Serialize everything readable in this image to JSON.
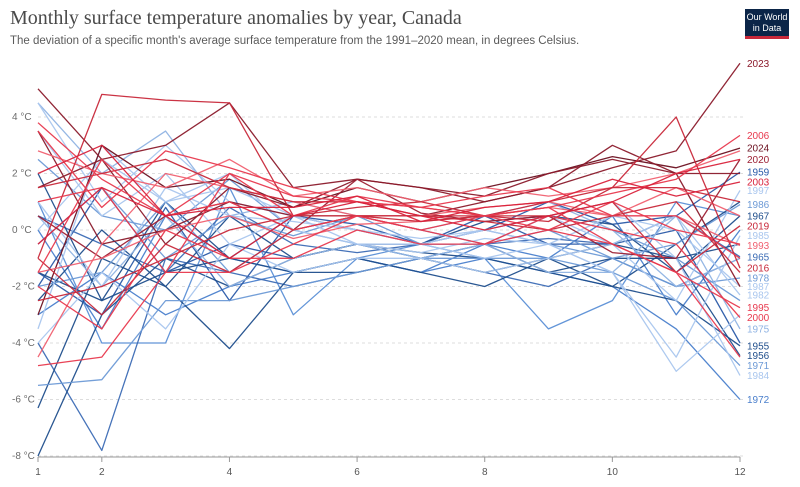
{
  "chart_data": {
    "type": "line",
    "title": "Monthly surface temperature anomalies by year, Canada",
    "subtitle": "The deviation of a specific month's average surface temperature from the 1991–2020 mean, in degrees Celsius.",
    "logo": [
      "Our World",
      "in Data"
    ],
    "x_ticks": [
      1,
      2,
      4,
      6,
      8,
      10,
      12
    ],
    "y_ticks": [
      {
        "value": 4,
        "label": "4 °C"
      },
      {
        "value": 2,
        "label": "2 °C"
      },
      {
        "value": 0,
        "label": "0 °C"
      },
      {
        "value": -2,
        "label": "-2 °C"
      },
      {
        "value": -4,
        "label": "-4 °C"
      },
      {
        "value": -6,
        "label": "-6 °C"
      },
      {
        "value": -8,
        "label": "-8 °C"
      }
    ],
    "xlim": [
      1,
      12
    ],
    "ylim": [
      -8,
      6
    ],
    "grid": "horizontal dashed",
    "colors": {
      "cold": "#1f4e8c",
      "mid_blue": "#5b8fd6",
      "light_blue": "#a9c6ee",
      "warm": "#e8394e",
      "dark_red": "#8b1a2b"
    },
    "end_labels": [
      {
        "label": "2023",
        "y": 5.9,
        "color": "#8b1a2b"
      },
      {
        "label": "2006",
        "y": 3.35,
        "color": "#e8394e"
      },
      {
        "label": "2024",
        "y": 2.9,
        "color": "#6b1020"
      },
      {
        "label": "2020",
        "y": 2.5,
        "color": "#9c1f33"
      },
      {
        "label": "1959",
        "y": 2.05,
        "color": "#2a5aa8"
      },
      {
        "label": "2003",
        "y": 1.7,
        "color": "#d9223b"
      },
      {
        "label": "1997",
        "y": 1.4,
        "color": "#a9c6ee"
      },
      {
        "label": "1986",
        "y": 0.9,
        "color": "#6d9ad6"
      },
      {
        "label": "1967",
        "y": 0.5,
        "color": "#1f4e8c"
      },
      {
        "label": "2019",
        "y": 0.15,
        "color": "#c8283a"
      },
      {
        "label": "1985",
        "y": -0.2,
        "color": "#a9c6ee"
      },
      {
        "label": "1993",
        "y": -0.55,
        "color": "#f06070"
      },
      {
        "label": "1965",
        "y": -0.95,
        "color": "#3c6cb5"
      },
      {
        "label": "2016",
        "y": -1.35,
        "color": "#c8283a"
      },
      {
        "label": "1978",
        "y": -1.7,
        "color": "#6d9ad6"
      },
      {
        "label": "1987",
        "y": -2.0,
        "color": "#a9c6ee"
      },
      {
        "label": "1982",
        "y": -2.3,
        "color": "#a9c6ee"
      },
      {
        "label": "1995",
        "y": -2.75,
        "color": "#e8394e"
      },
      {
        "label": "2000",
        "y": -3.1,
        "color": "#e8394e"
      },
      {
        "label": "1975",
        "y": -3.5,
        "color": "#8fb3e3"
      },
      {
        "label": "1955",
        "y": -4.1,
        "color": "#1f4e8c"
      },
      {
        "label": "1956",
        "y": -4.45,
        "color": "#1f4e8c"
      },
      {
        "label": "1971",
        "y": -4.8,
        "color": "#6d9ad6"
      },
      {
        "label": "1984",
        "y": -5.15,
        "color": "#a9c6ee"
      },
      {
        "label": "1972",
        "y": -6.0,
        "color": "#4a7fcc"
      }
    ],
    "series": [
      {
        "name": "2023",
        "color": "#8b1a2b",
        "values": [
          1.5,
          2.5,
          -0.5,
          1.5,
          0.8,
          1.8,
          1.5,
          1.0,
          1.5,
          2.2,
          2.8,
          5.9
        ]
      },
      {
        "name": "2006",
        "color": "#e8394e",
        "values": [
          3.8,
          1.8,
          0.5,
          2.0,
          1.2,
          1.0,
          0.8,
          0.5,
          0.8,
          1.3,
          1.8,
          3.35
        ]
      },
      {
        "name": "2024",
        "color": "#6b1020",
        "values": [
          -3.0,
          3.0,
          1.5,
          1.8,
          0.8,
          1.5,
          1.0,
          1.5,
          2.0,
          2.6,
          2.2,
          2.9
        ]
      },
      {
        "name": "2020",
        "color": "#9c1f33",
        "values": [
          0.5,
          -1.0,
          0.5,
          1.0,
          0.0,
          1.8,
          0.6,
          0.3,
          0.5,
          -0.8,
          -1.0,
          2.5
        ]
      },
      {
        "name": "1959",
        "color": "#2a5aa8",
        "values": [
          -1.5,
          -3.0,
          0.8,
          -2.5,
          0.5,
          0.2,
          -0.5,
          0.0,
          1.0,
          0.2,
          0.5,
          2.05
        ]
      },
      {
        "name": "2003",
        "color": "#d9223b",
        "values": [
          -0.5,
          1.5,
          0.5,
          0.8,
          0.8,
          1.2,
          0.3,
          0.8,
          1.0,
          1.8,
          1.2,
          1.7
        ]
      },
      {
        "name": "1997",
        "color": "#a9c6ee",
        "values": [
          1.0,
          -2.0,
          1.5,
          0.5,
          0.3,
          0.0,
          -0.3,
          0.0,
          0.5,
          -0.5,
          -2.5,
          1.4
        ]
      },
      {
        "name": "1986",
        "color": "#6d9ad6",
        "values": [
          -0.5,
          1.5,
          -1.0,
          0.5,
          -0.2,
          0.5,
          0.0,
          -0.5,
          0.0,
          -1.0,
          -0.5,
          0.9
        ]
      },
      {
        "name": "1967",
        "color": "#1f4e8c",
        "values": [
          2.0,
          -2.5,
          1.0,
          -1.0,
          0.5,
          0.0,
          -0.5,
          0.3,
          0.5,
          0.2,
          -1.5,
          0.5
        ]
      },
      {
        "name": "2019",
        "color": "#c8283a",
        "values": [
          -1.0,
          -3.0,
          -0.5,
          -1.5,
          0.0,
          0.5,
          0.3,
          0.5,
          0.5,
          1.0,
          -1.5,
          0.15
        ]
      },
      {
        "name": "1985",
        "color": "#a9c6ee",
        "values": [
          3.5,
          0.5,
          2.0,
          -0.5,
          0.5,
          -0.5,
          -0.8,
          -0.3,
          -0.5,
          -1.5,
          -4.5,
          -0.2
        ]
      },
      {
        "name": "1993",
        "color": "#f06070",
        "values": [
          -1.5,
          -1.0,
          0.0,
          0.5,
          -0.3,
          0.2,
          0.3,
          0.5,
          0.8,
          0.5,
          0.5,
          -0.55
        ]
      },
      {
        "name": "1965",
        "color": "#3c6cb5",
        "values": [
          0.5,
          -0.5,
          -1.5,
          0.8,
          -0.5,
          -0.8,
          -0.5,
          -0.5,
          -0.3,
          -0.5,
          0.5,
          -0.95
        ]
      },
      {
        "name": "2016",
        "color": "#c8283a",
        "values": [
          1.5,
          2.0,
          2.5,
          1.5,
          1.0,
          1.0,
          0.5,
          0.5,
          0.3,
          1.5,
          4.0,
          -1.35
        ]
      },
      {
        "name": "1978",
        "color": "#6d9ad6",
        "values": [
          -2.0,
          -1.5,
          1.0,
          -1.5,
          0.0,
          0.5,
          -0.5,
          0.0,
          -0.5,
          -1.0,
          -2.0,
          -1.7
        ]
      },
      {
        "name": "1987",
        "color": "#a9c6ee",
        "values": [
          0.0,
          2.5,
          1.0,
          1.5,
          0.5,
          0.0,
          -0.5,
          -1.0,
          -0.5,
          0.5,
          0.0,
          -2.0
        ]
      },
      {
        "name": "1982",
        "color": "#a9c6ee",
        "values": [
          -4.0,
          -1.5,
          -3.5,
          -0.5,
          -1.5,
          -1.0,
          -1.0,
          -1.5,
          -1.0,
          -0.5,
          0.5,
          -2.3
        ]
      },
      {
        "name": "1995",
        "color": "#e8394e",
        "values": [
          1.0,
          1.5,
          -1.5,
          2.0,
          0.5,
          1.2,
          0.8,
          0.5,
          0.8,
          -0.5,
          -1.5,
          -2.75
        ]
      },
      {
        "name": "2000",
        "color": "#e8394e",
        "values": [
          -1.5,
          2.5,
          0.5,
          1.0,
          0.0,
          0.5,
          0.0,
          -0.5,
          0.5,
          0.0,
          -0.5,
          -3.1
        ]
      },
      {
        "name": "1975",
        "color": "#8fb3e3",
        "values": [
          0.5,
          -2.0,
          0.5,
          -2.0,
          -1.0,
          -0.5,
          -1.0,
          -0.5,
          -1.5,
          -1.5,
          0.5,
          -3.5
        ]
      },
      {
        "name": "1955",
        "color": "#1f4e8c",
        "values": [
          -1.5,
          -2.5,
          -1.5,
          -1.0,
          -1.5,
          -1.5,
          -1.0,
          -1.5,
          -1.0,
          -2.0,
          -2.5,
          -4.1
        ]
      },
      {
        "name": "1956",
        "color": "#1f4e8c",
        "values": [
          -2.5,
          0.0,
          -2.0,
          0.5,
          -1.0,
          -0.5,
          -1.0,
          -0.5,
          -1.5,
          -1.0,
          -1.0,
          -4.45
        ]
      },
      {
        "name": "1971",
        "color": "#6d9ad6",
        "values": [
          -5.5,
          -5.3,
          -2.5,
          -2.5,
          -2.0,
          -1.5,
          -1.0,
          -1.0,
          -1.0,
          -1.5,
          -2.5,
          -4.8
        ]
      },
      {
        "name": "1984",
        "color": "#a9c6ee",
        "values": [
          4.5,
          1.0,
          3.0,
          1.0,
          0.5,
          0.0,
          -0.5,
          0.0,
          0.5,
          1.0,
          -1.0,
          -5.15
        ]
      },
      {
        "name": "1972",
        "color": "#4a7fcc",
        "values": [
          -3.0,
          -1.5,
          -3.0,
          -2.0,
          -1.5,
          -1.0,
          -1.5,
          -1.0,
          -1.5,
          -2.0,
          -3.5,
          -6.0
        ]
      },
      {
        "name": "",
        "color": "#8b1a2b",
        "values": [
          5.0,
          2.5,
          3.0,
          4.5,
          1.5,
          1.8,
          1.5,
          1.2,
          2.0,
          2.5,
          2.0,
          2.0
        ]
      },
      {
        "name": "",
        "color": "#c8283a",
        "values": [
          -1.0,
          4.8,
          4.6,
          4.5,
          0.5,
          0.8,
          1.0,
          0.5,
          1.0,
          1.5,
          1.5,
          1.0
        ]
      },
      {
        "name": "",
        "color": "#e8394e",
        "values": [
          3.5,
          0.8,
          2.8,
          2.2,
          1.5,
          1.0,
          0.8,
          1.2,
          1.5,
          0.5,
          0.5,
          -1.0
        ]
      },
      {
        "name": "",
        "color": "#f06070",
        "values": [
          -4.5,
          -0.5,
          2.0,
          1.5,
          1.0,
          0.5,
          0.5,
          0.8,
          1.0,
          0.5,
          1.5,
          0.5
        ]
      },
      {
        "name": "",
        "color": "#d9223b",
        "values": [
          2.0,
          3.0,
          0.5,
          -1.0,
          0.5,
          1.0,
          0.5,
          0.0,
          0.5,
          1.0,
          2.0,
          2.5
        ]
      },
      {
        "name": "",
        "color": "#c8283a",
        "values": [
          -2.5,
          -2.0,
          -1.0,
          0.0,
          0.5,
          0.5,
          0.5,
          0.3,
          0.0,
          0.5,
          1.0,
          -1.5
        ]
      },
      {
        "name": "",
        "color": "#e8394e",
        "values": [
          -4.8,
          -4.5,
          -1.5,
          -1.5,
          -0.5,
          0.5,
          0.0,
          0.5,
          0.0,
          1.0,
          0.0,
          -0.5
        ]
      },
      {
        "name": "",
        "color": "#1f4e8c",
        "values": [
          -8.0,
          -3.0,
          -1.0,
          -2.0,
          -1.0,
          -0.5,
          -0.8,
          -1.0,
          -1.5,
          -2.0,
          -0.5,
          1.0
        ]
      },
      {
        "name": "",
        "color": "#1f4e8c",
        "values": [
          -6.3,
          -1.0,
          -2.0,
          -4.2,
          -1.5,
          -1.0,
          -1.5,
          -2.0,
          -1.0,
          -0.5,
          -1.0,
          -0.5
        ]
      },
      {
        "name": "",
        "color": "#3c6cb5",
        "values": [
          -4.0,
          -7.8,
          -1.0,
          -1.5,
          -2.0,
          -1.5,
          -1.0,
          -1.5,
          -2.0,
          -1.0,
          -2.0,
          -1.0
        ]
      },
      {
        "name": "",
        "color": "#5b8fd6",
        "values": [
          1.0,
          -4.0,
          -4.0,
          1.5,
          -3.0,
          -1.0,
          -0.5,
          -1.0,
          -3.5,
          -2.5,
          1.0,
          0.5
        ]
      },
      {
        "name": "",
        "color": "#8fb3e3",
        "values": [
          4.5,
          2.0,
          3.5,
          0.5,
          1.0,
          0.5,
          0.0,
          0.5,
          1.0,
          0.0,
          -2.0,
          -1.0
        ]
      },
      {
        "name": "",
        "color": "#a9c6ee",
        "values": [
          -3.5,
          3.0,
          1.0,
          2.0,
          0.0,
          -0.5,
          -0.5,
          0.0,
          -0.5,
          -1.5,
          -5.0,
          -3.0
        ]
      },
      {
        "name": "",
        "color": "#6d9ad6",
        "values": [
          2.5,
          0.5,
          0.0,
          1.8,
          0.0,
          -0.5,
          -1.0,
          -0.5,
          0.5,
          0.0,
          -1.0,
          -2.5
        ]
      },
      {
        "name": "",
        "color": "#2a5aa8",
        "values": [
          -2.0,
          1.5,
          -1.5,
          -0.5,
          -1.0,
          -0.5,
          -0.5,
          0.5,
          -0.5,
          -0.5,
          0.0,
          -4.0
        ]
      },
      {
        "name": "",
        "color": "#4a7fcc",
        "values": [
          0.0,
          -3.5,
          0.5,
          -1.0,
          -1.5,
          -1.0,
          -1.5,
          -0.5,
          -1.0,
          0.5,
          -3.0,
          0.0
        ]
      },
      {
        "name": "",
        "color": "#e8394e",
        "values": [
          -2.0,
          -3.5,
          0.0,
          -1.0,
          -1.0,
          0.0,
          -0.5,
          -0.5,
          0.0,
          -0.5,
          -1.5,
          -4.5
        ]
      },
      {
        "name": "",
        "color": "#f06070",
        "values": [
          2.8,
          2.0,
          1.5,
          2.5,
          1.2,
          1.5,
          1.0,
          1.5,
          1.2,
          1.5,
          2.0,
          2.8
        ]
      },
      {
        "name": "",
        "color": "#8b1a2b",
        "values": [
          3.5,
          -0.5,
          0.0,
          1.0,
          0.5,
          0.5,
          0.5,
          1.0,
          1.5,
          3.0,
          2.0,
          -2.0
        ]
      }
    ]
  }
}
